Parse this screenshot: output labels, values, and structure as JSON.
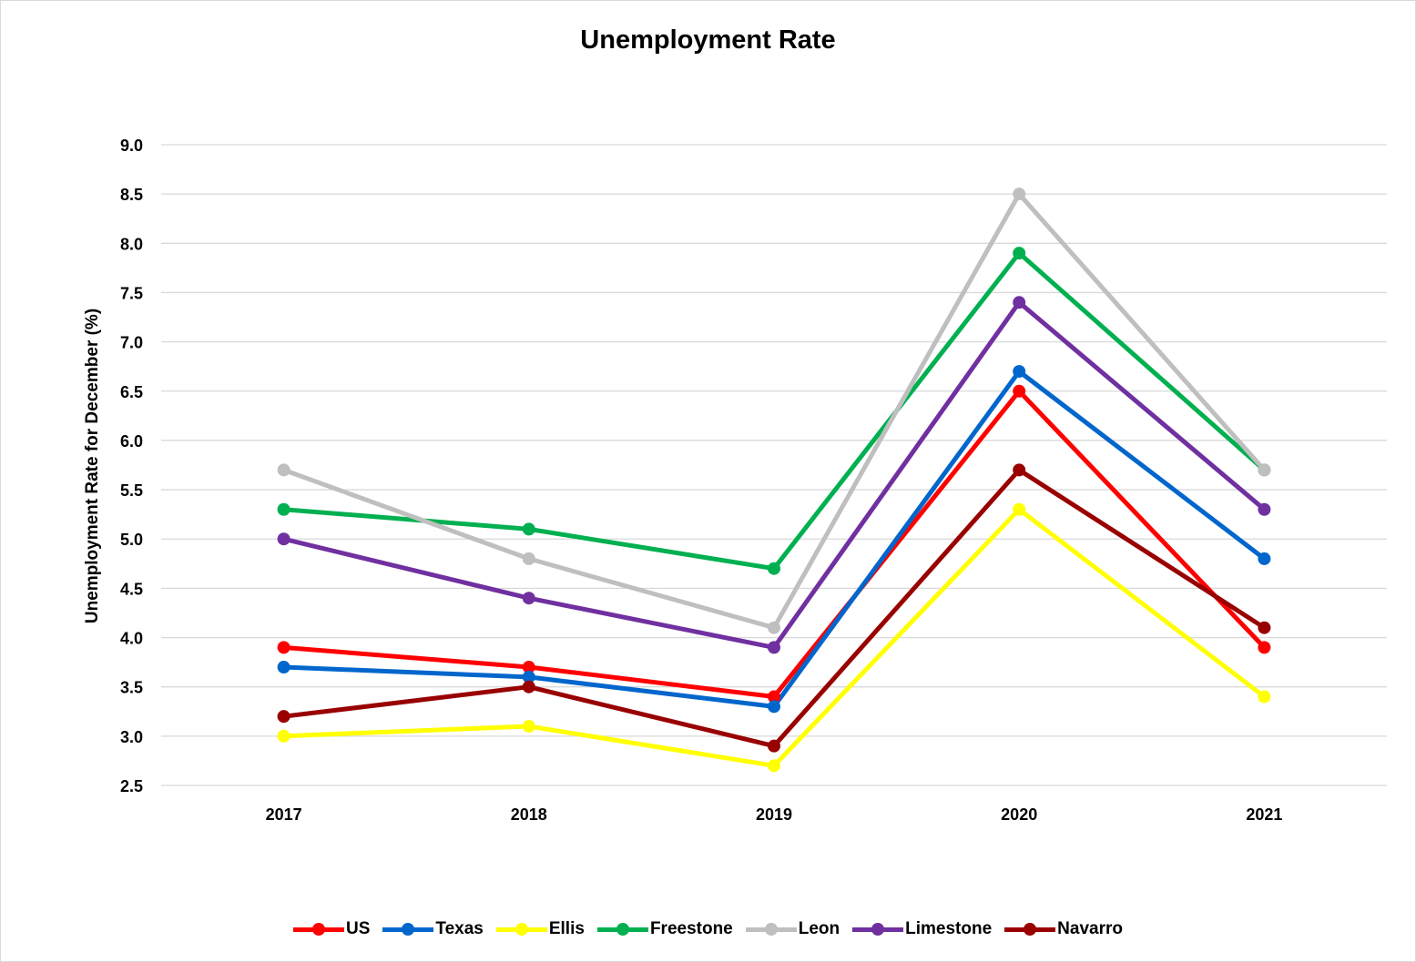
{
  "chart_data": {
    "type": "line",
    "title": "Unemployment Rate",
    "xlabel": "",
    "ylabel": "Unemployment Rate for December  (%)",
    "categories": [
      "2017",
      "2018",
      "2019",
      "2020",
      "2021"
    ],
    "ylim": [
      2.5,
      9.0
    ],
    "yticks": [
      "2.5",
      "3.0",
      "3.5",
      "4.0",
      "4.5",
      "5.0",
      "5.5",
      "6.0",
      "6.5",
      "7.0",
      "7.5",
      "8.0",
      "8.5",
      "9.0"
    ],
    "grid": true,
    "legend_position": "bottom",
    "series": [
      {
        "name": "US",
        "color": "#ff0000",
        "values": [
          3.9,
          3.7,
          3.4,
          6.5,
          3.9
        ]
      },
      {
        "name": "Texas",
        "color": "#0066cc",
        "values": [
          3.7,
          3.6,
          3.3,
          6.7,
          4.8
        ]
      },
      {
        "name": "Ellis",
        "color": "#ffff00",
        "values": [
          3.0,
          3.1,
          2.7,
          5.3,
          3.4
        ]
      },
      {
        "name": "Freestone",
        "color": "#00b050",
        "values": [
          5.3,
          5.1,
          4.7,
          7.9,
          5.7
        ]
      },
      {
        "name": "Leon",
        "color": "#bfbfbf",
        "values": [
          5.7,
          4.8,
          4.1,
          8.5,
          5.7
        ]
      },
      {
        "name": "Limestone",
        "color": "#7030a0",
        "values": [
          5.0,
          4.4,
          3.9,
          7.4,
          5.3
        ]
      },
      {
        "name": "Navarro",
        "color": "#990000",
        "values": [
          3.2,
          3.5,
          2.9,
          5.7,
          4.1
        ]
      }
    ]
  }
}
